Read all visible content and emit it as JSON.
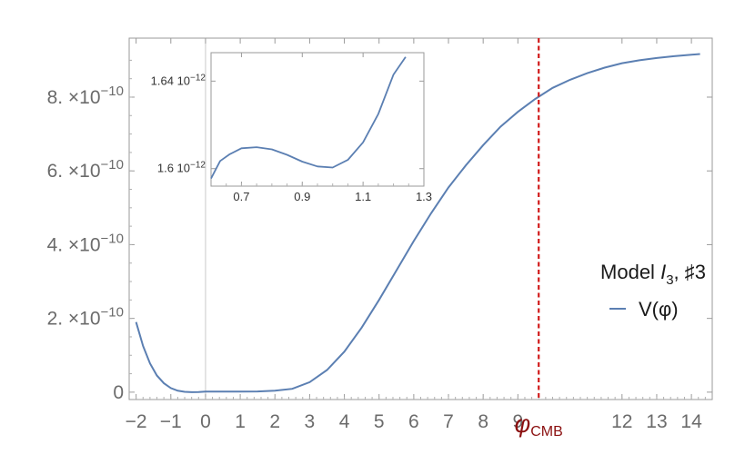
{
  "chart_data": [
    {
      "type": "line",
      "title": "",
      "xlabel": "",
      "ylabel": "",
      "xlim": [
        -2.2,
        14.6
      ],
      "ylim": [
        -2e-11,
        9.6e-10
      ],
      "x_ticks": [
        {
          "value": -2,
          "label": "−2"
        },
        {
          "value": -1,
          "label": "−1"
        },
        {
          "value": 0,
          "label": "0"
        },
        {
          "value": 1,
          "label": "1"
        },
        {
          "value": 2,
          "label": "2"
        },
        {
          "value": 3,
          "label": "3"
        },
        {
          "value": 4,
          "label": "4"
        },
        {
          "value": 5,
          "label": "5"
        },
        {
          "value": 6,
          "label": "6"
        },
        {
          "value": 7,
          "label": "7"
        },
        {
          "value": 8,
          "label": "8"
        },
        {
          "value": 9,
          "label": "9"
        },
        {
          "value": 12,
          "label": "12"
        },
        {
          "value": 13,
          "label": "13"
        },
        {
          "value": 14,
          "label": "14"
        }
      ],
      "y_ticks": [
        {
          "value": 0,
          "mantissa": "0",
          "exponent": ""
        },
        {
          "value": 2e-10,
          "mantissa": "2. ×10",
          "exponent": "−10"
        },
        {
          "value": 4e-10,
          "mantissa": "4. ×10",
          "exponent": "−10"
        },
        {
          "value": 6e-10,
          "mantissa": "6. ×10",
          "exponent": "−10"
        },
        {
          "value": 8e-10,
          "mantissa": "8. ×10",
          "exponent": "−10"
        }
      ],
      "series": [
        {
          "name": "V(φ)",
          "color": "#5b7fb2",
          "x": [
            -2.0,
            -1.8,
            -1.6,
            -1.4,
            -1.2,
            -1.0,
            -0.8,
            -0.6,
            -0.4,
            -0.2,
            0.0,
            0.5,
            1.0,
            1.5,
            2.0,
            2.5,
            3.0,
            3.5,
            4.0,
            4.5,
            5.0,
            5.5,
            6.0,
            6.5,
            7.0,
            7.5,
            8.0,
            8.5,
            9.0,
            9.5,
            10.0,
            10.5,
            11.0,
            11.5,
            12.0,
            12.5,
            13.0,
            13.5,
            14.0,
            14.25
          ],
          "y": [
            1.9e-10,
            1.25e-10,
            7.8e-11,
            4.5e-11,
            2.4e-11,
            1.1e-11,
            4e-12,
            1e-12,
            0.0,
            4e-13,
            1.6e-12,
            1.6e-12,
            1.6e-12,
            2e-12,
            4e-12,
            9e-12,
            2.7e-11,
            6e-11,
            1.1e-10,
            1.75e-10,
            2.5e-10,
            3.3e-10,
            4.1e-10,
            4.85e-10,
            5.55e-10,
            6.15e-10,
            6.7e-10,
            7.2e-10,
            7.6e-10,
            7.95e-10,
            8.25e-10,
            8.47e-10,
            8.65e-10,
            8.8e-10,
            8.92e-10,
            9e-10,
            9.06e-10,
            9.11e-10,
            9.15e-10,
            9.17e-10
          ]
        }
      ],
      "vline": {
        "x": 9.6,
        "label": "φ",
        "label_sub": "CMB",
        "color": "#d11a1a",
        "label_color": "#8b1010"
      },
      "legend": {
        "title_main": "Model ",
        "title_italic": "I",
        "title_sub": "3",
        "title_tail": ",  ♯3",
        "entry": "V(φ)",
        "position": "right"
      },
      "grid": false
    },
    {
      "type": "line",
      "title": "",
      "xlim": [
        0.6,
        1.3
      ],
      "ylim": [
        1.592e-12,
        1.653e-12
      ],
      "x_ticks": [
        {
          "value": 0.7,
          "label": "0.7"
        },
        {
          "value": 0.9,
          "label": "0.9"
        },
        {
          "value": 1.1,
          "label": "1.1"
        },
        {
          "value": 1.3,
          "label": "1.3"
        }
      ],
      "y_ticks": [
        {
          "value": 1.6e-12,
          "mantissa": "1.6 10",
          "exponent": "−12"
        },
        {
          "value": 1.64e-12,
          "mantissa": "1.64 10",
          "exponent": "−12"
        }
      ],
      "series": [
        {
          "name": "",
          "color": "#5b7fb2",
          "x": [
            0.6,
            0.63,
            0.66,
            0.7,
            0.75,
            0.8,
            0.85,
            0.9,
            0.95,
            1.0,
            1.05,
            1.1,
            1.15,
            1.2,
            1.24
          ],
          "y": [
            1.5955e-12,
            1.6035e-12,
            1.6065e-12,
            1.6093e-12,
            1.6098e-12,
            1.6088e-12,
            1.6063e-12,
            1.6032e-12,
            1.601e-12,
            1.6005e-12,
            1.604e-12,
            1.612e-12,
            1.625e-12,
            1.643e-12,
            1.651e-12
          ]
        }
      ],
      "grid": false
    }
  ]
}
